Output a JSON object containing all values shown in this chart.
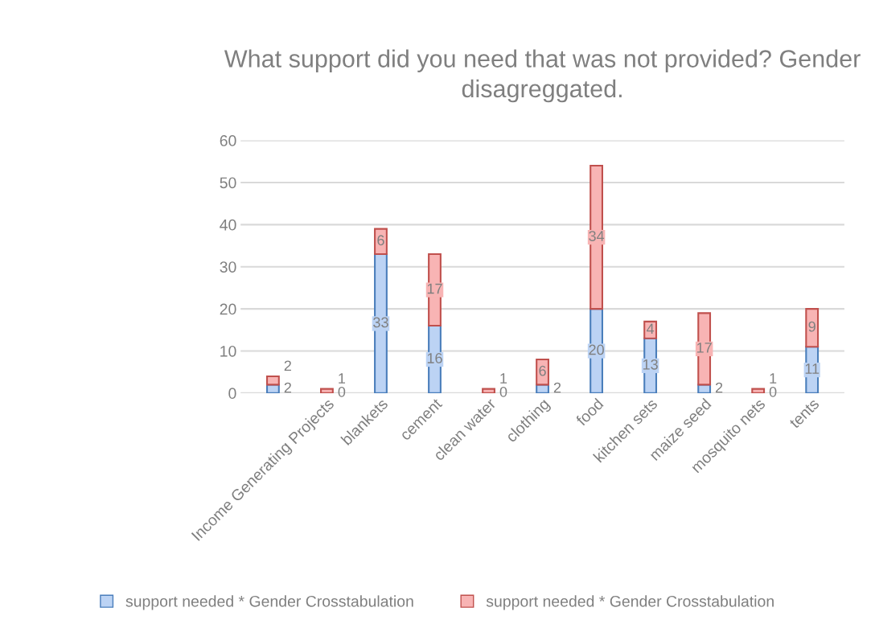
{
  "chart_data": {
    "type": "bar",
    "title": "What support did you need that was not provided? Gender disagreggated.",
    "categories": [
      null,
      "Income Generating Projects",
      "blankets",
      "cement",
      "clean water",
      "clothing",
      "food",
      "kitchen sets",
      "maize seed",
      "mosquito nets",
      "tents"
    ],
    "series": [
      {
        "name": "support needed * Gender Crosstabulation",
        "color": "#bcd3f4",
        "values": [
          2,
          0,
          33,
          16,
          0,
          2,
          20,
          13,
          2,
          0,
          11
        ]
      },
      {
        "name": "support needed * Gender Crosstabulation",
        "color": "#f8b4b4",
        "values": [
          2,
          1,
          6,
          17,
          1,
          6,
          34,
          4,
          17,
          1,
          9
        ]
      }
    ],
    "stacked": true,
    "data_labels": true,
    "ylim": [
      0,
      60
    ],
    "yticks": [
      0,
      10,
      20,
      30,
      40,
      50,
      60
    ],
    "grid": "y",
    "legend": "bottom"
  }
}
